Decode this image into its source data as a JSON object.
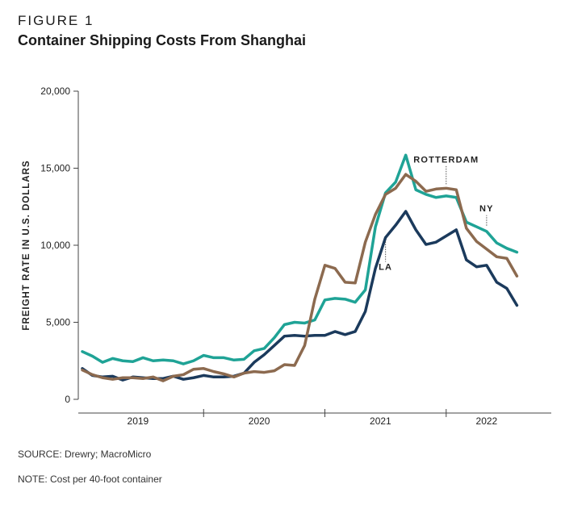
{
  "figure_label": "FIGURE 1",
  "figure_title": "Container Shipping Costs From Shanghai",
  "source": "SOURCE: Drewry; MacroMicro",
  "note": "NOTE: Cost per 40-foot container",
  "colors": {
    "LA": "#1b3a5c",
    "NY": "#1fa396",
    "Rotterdam": "#8c6a4f",
    "axis": "#444444"
  },
  "chart_data": {
    "type": "line",
    "title": "Container Shipping Costs From Shanghai",
    "xlabel": "",
    "ylabel": "FREIGHT RATE IN U.S. DOLLARS",
    "ylim": [
      0,
      20000
    ],
    "yticks": [
      0,
      5000,
      10000,
      15000,
      20000
    ],
    "ytick_labels": [
      "0",
      "5,000",
      "10,000",
      "15,000",
      "20,000"
    ],
    "x_index_range": [
      0,
      46
    ],
    "year_labels": [
      {
        "label": "2019",
        "x": 5.5
      },
      {
        "label": "2020",
        "x": 17.5
      },
      {
        "label": "2021",
        "x": 29.5
      },
      {
        "label": "2022",
        "x": 40
      }
    ],
    "year_dividers": [
      12,
      24,
      36
    ],
    "series": [
      {
        "name": "LA",
        "label": "LA",
        "values": [
          2000,
          1550,
          1450,
          1500,
          1250,
          1450,
          1400,
          1350,
          1350,
          1500,
          1300,
          1400,
          1550,
          1450,
          1450,
          1500,
          1700,
          2400,
          2900,
          3500,
          4100,
          4150,
          4100,
          4150,
          4150,
          4400,
          4200,
          4400,
          5700,
          8500,
          10500,
          11300,
          12200,
          11000,
          10050,
          10200,
          10600,
          11000,
          9050,
          8600,
          8700,
          7600,
          7200,
          6100
        ]
      },
      {
        "name": "NY",
        "label": "NY",
        "values": [
          3100,
          2800,
          2400,
          2650,
          2500,
          2450,
          2700,
          2500,
          2550,
          2500,
          2300,
          2500,
          2850,
          2700,
          2700,
          2550,
          2600,
          3150,
          3300,
          4000,
          4850,
          5000,
          4950,
          5150,
          6450,
          6550,
          6500,
          6300,
          7100,
          11200,
          13400,
          14100,
          15850,
          13600,
          13300,
          13100,
          13200,
          13100,
          11500,
          11200,
          10900,
          10150,
          9800,
          9550
        ]
      },
      {
        "name": "Rotterdam",
        "label": "ROTTERDAM",
        "values": [
          1900,
          1600,
          1400,
          1300,
          1400,
          1400,
          1350,
          1450,
          1200,
          1500,
          1600,
          1950,
          2000,
          1800,
          1650,
          1450,
          1700,
          1800,
          1750,
          1850,
          2250,
          2200,
          3500,
          6500,
          8700,
          8500,
          7600,
          7550,
          10200,
          12000,
          13300,
          13700,
          14600,
          14150,
          13500,
          13650,
          13700,
          13600,
          11100,
          10250,
          9750,
          9250,
          9150,
          8000
        ]
      }
    ],
    "annotations": [
      {
        "text": "ROTTERDAM",
        "series": "Rotterdam",
        "x": 36
      },
      {
        "text": "NY",
        "series": "NY",
        "x": 40
      },
      {
        "text": "LA",
        "series": "LA",
        "x": 30
      }
    ]
  }
}
